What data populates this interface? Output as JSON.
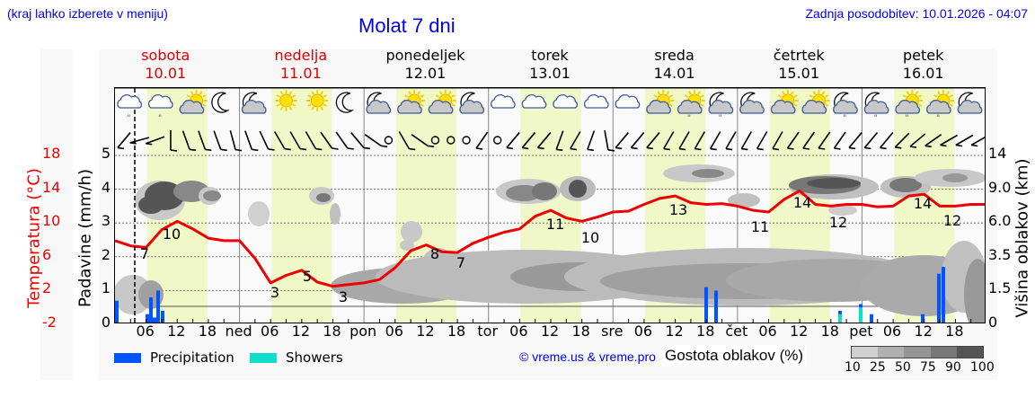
{
  "header": {
    "hint": "(kraj lahko izberete v meniju)",
    "title": "Molat 7 dni",
    "updated": "Zadnja posodobitev: 10.01.2026 - 04:07"
  },
  "days": [
    {
      "name": "sobota",
      "date": "10.01",
      "weekend": true
    },
    {
      "name": "nedelja",
      "date": "11.01",
      "weekend": true
    },
    {
      "name": "ponedeljek",
      "date": "12.01",
      "weekend": false
    },
    {
      "name": "torek",
      "date": "13.01",
      "weekend": false
    },
    {
      "name": "sreda",
      "date": "14.01",
      "weekend": false
    },
    {
      "name": "četrtek",
      "date": "15.01",
      "weekend": false
    },
    {
      "name": "petek",
      "date": "16.01",
      "weekend": false
    }
  ],
  "x_axis": {
    "labels": [
      "06",
      "12",
      "18",
      "ned",
      "06",
      "12",
      "18",
      "pon",
      "06",
      "12",
      "18",
      "tor",
      "06",
      "12",
      "18",
      "sre",
      "06",
      "12",
      "18",
      "čet",
      "06",
      "12",
      "18",
      "pet",
      "06",
      "12",
      "18"
    ]
  },
  "axes": {
    "temp_title": "Temperatura (°C)",
    "temp_ticks": [
      "18",
      "14",
      "10",
      "6",
      "2",
      "-2"
    ],
    "precip_title": "Padavine (mm/h)",
    "precip_ticks": [
      "5",
      "4",
      "3",
      "2",
      "1",
      "0"
    ],
    "cloud_title": "Višina oblakov (km)",
    "cloud_ticks": [
      "14",
      "9.0",
      "6.0",
      "3.5",
      "1.5",
      "0"
    ]
  },
  "legend": {
    "precipitation": "Precipitation",
    "showers": "Showers",
    "precipitation_color": "#0055ff",
    "showers_color": "#11ddcc",
    "copyright": "© vreme.us & vreme.pro",
    "cloud_density_title": "Gostota oblakov (%)",
    "cloud_density_ticks": [
      "10",
      "25",
      "50",
      "75",
      "90",
      "100"
    ]
  },
  "colors": {
    "temperature_line": "#ee0000",
    "day_band": "#f0f8c8",
    "weekend_label": "#dd0000"
  },
  "chart_data": {
    "type": "line",
    "title": "Molat 7 dni",
    "xlabel": "",
    "ylabel": "Temperatura (°C)",
    "ylim": [
      -2,
      18
    ],
    "x": [
      "Sat 00",
      "Sat 03",
      "Sat 06",
      "Sat 09",
      "Sat 12",
      "Sat 15",
      "Sat 18",
      "Sat 21",
      "Sun 00",
      "Sun 03",
      "Sun 06",
      "Sun 09",
      "Sun 12",
      "Sun 15",
      "Sun 18",
      "Sun 21",
      "Mon 00",
      "Mon 03",
      "Mon 06",
      "Mon 09",
      "Mon 12",
      "Mon 15",
      "Mon 18",
      "Mon 21",
      "Tue 00",
      "Tue 03",
      "Tue 06",
      "Tue 09",
      "Tue 12",
      "Tue 15",
      "Tue 18",
      "Tue 21",
      "Wed 00",
      "Wed 03",
      "Wed 06",
      "Wed 09",
      "Wed 12",
      "Wed 15",
      "Wed 18",
      "Wed 21",
      "Thu 00",
      "Thu 03",
      "Thu 06",
      "Thu 09",
      "Thu 12",
      "Thu 15",
      "Thu 18",
      "Thu 21",
      "Fri 00",
      "Fri 03",
      "Fri 06",
      "Fri 09",
      "Fri 12",
      "Fri 15",
      "Fri 18",
      "Fri 21",
      "Fri 24"
    ],
    "series": [
      {
        "name": "Temperatura (°C)",
        "values": [
          7.9,
          7.3,
          7.1,
          9.2,
          10.2,
          9.3,
          8.2,
          7.9,
          7.9,
          5.8,
          2.9,
          3.8,
          4.4,
          3.0,
          2.5,
          2.7,
          2.9,
          3.3,
          4.7,
          6.7,
          7.4,
          6.6,
          6.5,
          7.6,
          8.3,
          8.9,
          9.3,
          10.8,
          11.5,
          10.6,
          10.2,
          10.7,
          11.3,
          11.4,
          12.2,
          12.9,
          13.2,
          12.4,
          12.2,
          12.3,
          12.0,
          11.5,
          11.3,
          12.8,
          13.8,
          12.2,
          12.0,
          12.2,
          12.2,
          11.9,
          12.0,
          13.2,
          13.4,
          12.0,
          12.0,
          12.2,
          12.2
        ]
      },
      {
        "name": "Precipitation (mm/h)",
        "values": [
          0.7,
          0,
          0.8,
          1.0,
          0.5,
          0,
          0,
          0,
          0,
          0,
          0,
          0,
          0,
          0,
          0,
          0,
          0,
          0,
          0,
          0,
          0,
          0,
          0,
          0,
          0,
          0,
          0,
          0,
          0,
          0,
          0,
          0,
          0,
          0,
          0,
          0,
          0,
          0,
          1.1,
          0,
          0,
          0,
          0,
          0,
          0,
          0,
          0.4,
          0.6,
          0.3,
          0,
          0,
          0.3,
          0,
          1.7,
          0,
          0,
          0
        ]
      },
      {
        "name": "Showers (mm/h)",
        "values": [
          0,
          0,
          0,
          0,
          0,
          0,
          0,
          0,
          0,
          0,
          0,
          0,
          0,
          0,
          0,
          0,
          0,
          0,
          0,
          0,
          0,
          0,
          0,
          0,
          0,
          0,
          0,
          0,
          0,
          0,
          0,
          0,
          0,
          0,
          0,
          0,
          0,
          0,
          0,
          0,
          0,
          0,
          0,
          0,
          0,
          0,
          0.3,
          0.6,
          0,
          0,
          0,
          0,
          0,
          0,
          0,
          0,
          0
        ]
      }
    ],
    "temperature_labels": [
      {
        "day": "sobota",
        "min": 7,
        "max": 10
      },
      {
        "day": "nedelja",
        "min": 3,
        "max": 5,
        "night_min": 3
      },
      {
        "day": "ponedeljek",
        "max": 8,
        "min": 7
      },
      {
        "day": "torek",
        "max": 11,
        "min": 10
      },
      {
        "day": "sreda",
        "max": 13,
        "min": 11
      },
      {
        "day": "četrtek",
        "max": 14,
        "min": 12
      },
      {
        "day": "petek",
        "max": 14,
        "min": 12
      }
    ],
    "secondary_axes": {
      "precip_ylim": [
        0,
        5
      ],
      "cloud_height_ticks_km": [
        0,
        1.5,
        3.5,
        6.0,
        9.0,
        14
      ]
    },
    "legend": [
      "Precipitation",
      "Showers",
      "Gostota oblakov (%)"
    ],
    "grid": true
  }
}
